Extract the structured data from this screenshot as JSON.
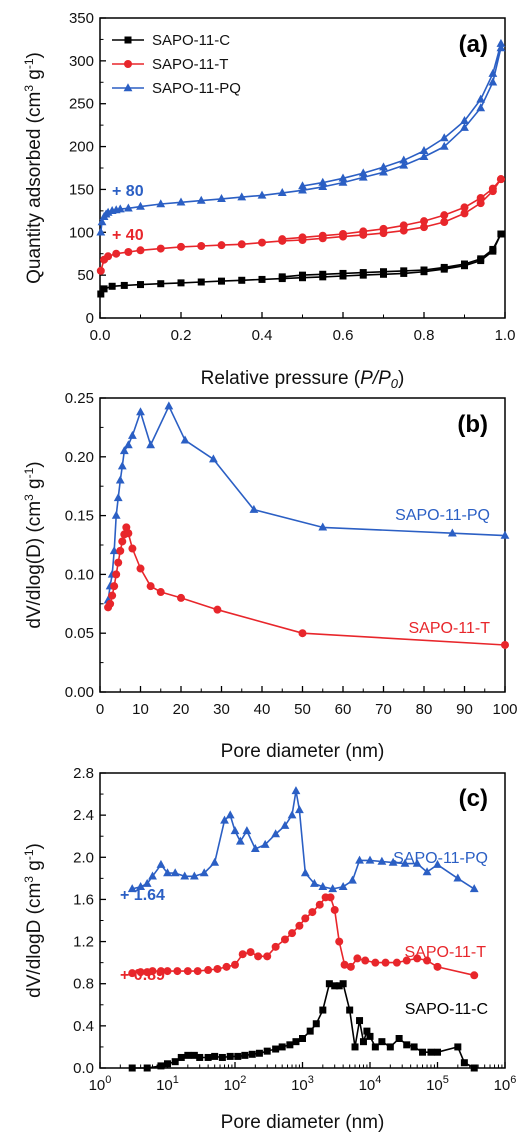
{
  "colors": {
    "C": "#000000",
    "T": "#e8262b",
    "PQ": "#2b5fc4"
  },
  "chart_data": [
    {
      "type": "line",
      "panel_label": "(a)",
      "xlabel": "Relative pressure (P/P0)",
      "ylabel": "Quantity adsorbed (cm3 g-1)",
      "xlim": [
        0,
        1.0
      ],
      "ylim": [
        0,
        350
      ],
      "xticks": [
        "0.0",
        "0.2",
        "0.4",
        "0.6",
        "0.8",
        "1.0"
      ],
      "yticks": [
        "0",
        "50",
        "100",
        "150",
        "200",
        "250",
        "300",
        "350"
      ],
      "legend": "top-left",
      "annotations": [
        {
          "text": "+ 80",
          "series": "SAPO-11-PQ"
        },
        {
          "text": "+ 40",
          "series": "SAPO-11-T"
        }
      ],
      "series": [
        {
          "name": "SAPO-11-C",
          "color_key": "C",
          "marker": "square",
          "x": [
            0.002,
            0.01,
            0.03,
            0.06,
            0.1,
            0.15,
            0.2,
            0.25,
            0.3,
            0.35,
            0.4,
            0.45,
            0.5,
            0.55,
            0.6,
            0.65,
            0.7,
            0.75,
            0.8,
            0.85,
            0.9,
            0.94,
            0.97,
            0.99,
            0.99,
            0.97,
            0.94,
            0.9,
            0.85,
            0.8,
            0.75,
            0.7,
            0.65,
            0.6,
            0.55,
            0.5,
            0.45
          ],
          "y": [
            28,
            34,
            37,
            38,
            39,
            40,
            41,
            42,
            43,
            44,
            45,
            46,
            47,
            48,
            49,
            50,
            51,
            52,
            54,
            57,
            61,
            67,
            78,
            98,
            98,
            80,
            69,
            63,
            59,
            56,
            55,
            54,
            53,
            52,
            51,
            50,
            48
          ]
        },
        {
          "name": "SAPO-11-T",
          "color_key": "T",
          "marker": "circle",
          "x": [
            0.002,
            0.01,
            0.02,
            0.04,
            0.07,
            0.1,
            0.15,
            0.2,
            0.25,
            0.3,
            0.35,
            0.4,
            0.45,
            0.5,
            0.55,
            0.6,
            0.65,
            0.7,
            0.75,
            0.8,
            0.85,
            0.9,
            0.94,
            0.97,
            0.99,
            0.99,
            0.97,
            0.94,
            0.9,
            0.85,
            0.8,
            0.75,
            0.7,
            0.65,
            0.6,
            0.55,
            0.5,
            0.45
          ],
          "y": [
            55,
            68,
            72,
            75,
            77,
            79,
            81,
            83,
            84,
            85,
            86,
            88,
            90,
            91,
            93,
            95,
            97,
            99,
            102,
            106,
            112,
            122,
            134,
            148,
            162,
            162,
            151,
            140,
            129,
            120,
            113,
            108,
            104,
            101,
            98,
            96,
            94,
            92
          ]
        },
        {
          "name": "SAPO-11-PQ",
          "color_key": "PQ",
          "marker": "triangle",
          "x": [
            0.002,
            0.005,
            0.01,
            0.015,
            0.02,
            0.03,
            0.04,
            0.05,
            0.07,
            0.1,
            0.15,
            0.2,
            0.25,
            0.3,
            0.35,
            0.4,
            0.45,
            0.5,
            0.55,
            0.6,
            0.65,
            0.7,
            0.75,
            0.8,
            0.85,
            0.9,
            0.94,
            0.97,
            0.99,
            0.99,
            0.97,
            0.94,
            0.9,
            0.85,
            0.8,
            0.75,
            0.7,
            0.65,
            0.6,
            0.55,
            0.5
          ],
          "y": [
            100,
            112,
            118,
            121,
            123,
            125,
            126,
            127,
            128,
            130,
            133,
            135,
            137,
            139,
            141,
            143,
            146,
            149,
            153,
            158,
            164,
            170,
            178,
            188,
            200,
            222,
            245,
            275,
            315,
            320,
            285,
            255,
            230,
            210,
            195,
            184,
            176,
            169,
            163,
            158,
            154
          ]
        }
      ]
    },
    {
      "type": "line",
      "panel_label": "(b)",
      "xlabel": "Pore diameter (nm)",
      "ylabel": "dV/dlog(D) (cm3 g-1)",
      "xlim": [
        0,
        100
      ],
      "ylim": [
        0.0,
        0.25
      ],
      "xticks": [
        "0",
        "10",
        "20",
        "30",
        "40",
        "50",
        "60",
        "70",
        "80",
        "90",
        "100"
      ],
      "yticks": [
        "0.00",
        "0.05",
        "0.10",
        "0.15",
        "0.20",
        "0.25"
      ],
      "series": [
        {
          "name": "SAPO-11-PQ",
          "color_key": "PQ",
          "marker": "triangle",
          "x": [
            2.0,
            2.5,
            3.0,
            3.5,
            4.0,
            4.5,
            5.0,
            5.5,
            6.0,
            7.0,
            8.0,
            10.0,
            12.5,
            17.0,
            21.0,
            28.0,
            38.0,
            55.0,
            87.0,
            100.0
          ],
          "y": [
            0.078,
            0.09,
            0.1,
            0.12,
            0.15,
            0.165,
            0.18,
            0.192,
            0.205,
            0.21,
            0.218,
            0.238,
            0.21,
            0.243,
            0.214,
            0.198,
            0.155,
            0.14,
            0.135,
            0.133
          ]
        },
        {
          "name": "SAPO-11-T",
          "color_key": "T",
          "marker": "circle",
          "x": [
            2.0,
            2.5,
            3.0,
            3.5,
            4.0,
            4.5,
            5.0,
            5.5,
            6.0,
            6.5,
            7.0,
            8.0,
            10.0,
            12.5,
            15.0,
            20.0,
            29.0,
            50.0,
            100.0
          ],
          "y": [
            0.072,
            0.075,
            0.082,
            0.09,
            0.1,
            0.11,
            0.12,
            0.128,
            0.134,
            0.14,
            0.135,
            0.122,
            0.105,
            0.09,
            0.085,
            0.08,
            0.07,
            0.05,
            0.04
          ]
        }
      ]
    },
    {
      "type": "line",
      "panel_label": "(c)",
      "xlabel": "Pore diameter (nm)",
      "ylabel": "dV/dlogD (cm3 g-1)",
      "xscale": "log",
      "xlim": [
        1,
        1000000
      ],
      "ylim": [
        0.0,
        2.8
      ],
      "xtick_exponents": [
        0,
        1,
        2,
        3,
        4,
        5,
        6
      ],
      "yticks": [
        "0.0",
        "0.4",
        "0.8",
        "1.2",
        "1.6",
        "2.0",
        "2.4",
        "2.8"
      ],
      "annotations": [
        {
          "text": "+ 1.64",
          "series": "SAPO-11-PQ"
        },
        {
          "text": "+ 0.89",
          "series": "SAPO-11-T"
        }
      ],
      "series": [
        {
          "name": "SAPO-11-PQ",
          "color_key": "PQ",
          "marker": "triangle",
          "x": [
            3,
            4,
            5,
            6,
            8,
            10,
            13,
            18,
            25,
            35,
            50,
            70,
            85,
            100,
            120,
            150,
            200,
            280,
            400,
            550,
            700,
            800,
            900,
            1100,
            1500,
            2000,
            2800,
            4000,
            5500,
            7000,
            10000,
            15000,
            22000,
            33000,
            50000,
            70000,
            100000,
            200000,
            350000
          ],
          "y": [
            1.7,
            1.72,
            1.75,
            1.82,
            1.93,
            1.85,
            1.85,
            1.82,
            1.82,
            1.85,
            1.95,
            2.35,
            2.4,
            2.25,
            2.15,
            2.25,
            2.08,
            2.12,
            2.22,
            2.3,
            2.4,
            2.63,
            2.45,
            1.85,
            1.75,
            1.72,
            1.7,
            1.72,
            1.78,
            1.97,
            1.97,
            1.96,
            1.95,
            1.94,
            1.94,
            1.86,
            1.93,
            1.8,
            1.7
          ]
        },
        {
          "name": "SAPO-11-T",
          "color_key": "T",
          "marker": "circle",
          "x": [
            3,
            4,
            5,
            6,
            8,
            10,
            14,
            20,
            28,
            40,
            55,
            75,
            100,
            130,
            170,
            220,
            300,
            400,
            550,
            700,
            900,
            1100,
            1400,
            1800,
            2200,
            2600,
            3000,
            3500,
            4200,
            5200,
            6500,
            8500,
            12000,
            17000,
            25000,
            35000,
            50000,
            70000,
            100000,
            350000
          ],
          "y": [
            0.9,
            0.91,
            0.91,
            0.92,
            0.92,
            0.92,
            0.92,
            0.92,
            0.92,
            0.93,
            0.94,
            0.96,
            0.98,
            1.08,
            1.1,
            1.06,
            1.06,
            1.15,
            1.22,
            1.28,
            1.35,
            1.42,
            1.48,
            1.55,
            1.62,
            1.62,
            1.5,
            1.2,
            0.98,
            0.96,
            1.04,
            1.02,
            1.0,
            1.0,
            1.0,
            1.02,
            1.04,
            1.02,
            0.96,
            0.88
          ]
        },
        {
          "name": "SAPO-11-C",
          "color_key": "C",
          "marker": "square",
          "x": [
            3,
            5,
            8,
            10,
            13,
            16,
            20,
            25,
            30,
            40,
            50,
            65,
            85,
            110,
            140,
            180,
            230,
            300,
            400,
            500,
            650,
            800,
            1000,
            1300,
            1600,
            2000,
            2500,
            3000,
            3500,
            4000,
            5000,
            6000,
            7000,
            8000,
            9000,
            10000,
            12000,
            15000,
            20000,
            27000,
            35000,
            45000,
            60000,
            80000,
            100000,
            200000,
            250000,
            350000
          ],
          "y": [
            0.0,
            0.0,
            0.02,
            0.04,
            0.06,
            0.1,
            0.12,
            0.12,
            0.1,
            0.1,
            0.11,
            0.1,
            0.11,
            0.11,
            0.12,
            0.13,
            0.14,
            0.16,
            0.18,
            0.2,
            0.22,
            0.25,
            0.28,
            0.35,
            0.42,
            0.55,
            0.8,
            0.78,
            0.78,
            0.8,
            0.55,
            0.2,
            0.45,
            0.25,
            0.35,
            0.3,
            0.2,
            0.25,
            0.2,
            0.28,
            0.22,
            0.2,
            0.15,
            0.15,
            0.15,
            0.2,
            0.05,
            0.0
          ]
        }
      ]
    }
  ]
}
